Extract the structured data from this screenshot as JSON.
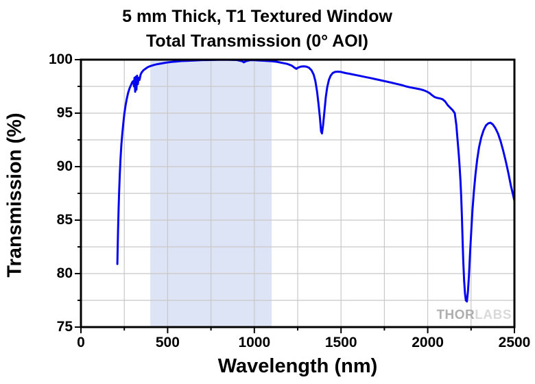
{
  "title": {
    "line1": "5 mm Thick, T1 Textured Window",
    "line2": "Total Transmission (0° AOI)"
  },
  "watermark": {
    "part1": "THOR",
    "part2": "LABS"
  },
  "colors": {
    "line": "#0404ee",
    "band": "#dde4f5",
    "grid": "#c8c8c8",
    "axis": "#000000"
  },
  "chart_data": {
    "type": "line",
    "title": "5 mm Thick, T1 Textured Window Total Transmission (0° AOI)",
    "xlabel": "Wavelength (nm)",
    "ylabel": "Transmission (%)",
    "xlim": [
      0,
      2500
    ],
    "ylim": [
      75,
      100
    ],
    "x_major_ticks": [
      0,
      500,
      1000,
      1500,
      2000,
      2500
    ],
    "x_minor_step": 250,
    "y_major_ticks": [
      75,
      80,
      85,
      90,
      95,
      100
    ],
    "y_minor_step": 2.5,
    "grid": true,
    "shaded_band_x": [
      400,
      1100
    ],
    "legend": "none",
    "series": [
      {
        "name": "Total Transmission",
        "points": [
          [
            210,
            80.9
          ],
          [
            212,
            82.5
          ],
          [
            214,
            84.0
          ],
          [
            217,
            86.0
          ],
          [
            220,
            87.5
          ],
          [
            224,
            89.2
          ],
          [
            228,
            90.6
          ],
          [
            233,
            92.0
          ],
          [
            238,
            93.0
          ],
          [
            244,
            94.0
          ],
          [
            250,
            94.9
          ],
          [
            257,
            95.7
          ],
          [
            264,
            96.3
          ],
          [
            272,
            96.9
          ],
          [
            280,
            97.3
          ],
          [
            288,
            97.6
          ],
          [
            296,
            97.9
          ],
          [
            302,
            98.0
          ],
          [
            306,
            97.5
          ],
          [
            309,
            98.3
          ],
          [
            313,
            97.0
          ],
          [
            316,
            98.4
          ],
          [
            320,
            97.2
          ],
          [
            324,
            98.5
          ],
          [
            328,
            97.7
          ],
          [
            333,
            98.3
          ],
          [
            338,
            98.1
          ],
          [
            344,
            98.6
          ],
          [
            350,
            98.8
          ],
          [
            360,
            99.0
          ],
          [
            372,
            99.15
          ],
          [
            386,
            99.3
          ],
          [
            400,
            99.4
          ],
          [
            420,
            99.5
          ],
          [
            440,
            99.58
          ],
          [
            465,
            99.65
          ],
          [
            490,
            99.72
          ],
          [
            520,
            99.78
          ],
          [
            550,
            99.83
          ],
          [
            580,
            99.87
          ],
          [
            620,
            99.9
          ],
          [
            660,
            99.93
          ],
          [
            700,
            99.96
          ],
          [
            750,
            99.97
          ],
          [
            800,
            99.98
          ],
          [
            850,
            99.99
          ],
          [
            900,
            99.97
          ],
          [
            930,
            99.85
          ],
          [
            940,
            99.75
          ],
          [
            950,
            99.85
          ],
          [
            975,
            99.95
          ],
          [
            1000,
            99.95
          ],
          [
            1030,
            99.92
          ],
          [
            1060,
            99.9
          ],
          [
            1100,
            99.85
          ],
          [
            1130,
            99.8
          ],
          [
            1160,
            99.7
          ],
          [
            1190,
            99.6
          ],
          [
            1215,
            99.45
          ],
          [
            1232,
            99.25
          ],
          [
            1242,
            99.15
          ],
          [
            1252,
            99.25
          ],
          [
            1268,
            99.35
          ],
          [
            1285,
            99.38
          ],
          [
            1300,
            99.35
          ],
          [
            1315,
            99.25
          ],
          [
            1330,
            99.0
          ],
          [
            1342,
            98.6
          ],
          [
            1352,
            98.0
          ],
          [
            1362,
            97.0
          ],
          [
            1370,
            95.9
          ],
          [
            1378,
            94.6
          ],
          [
            1385,
            93.3
          ],
          [
            1390,
            93.1
          ],
          [
            1396,
            93.8
          ],
          [
            1404,
            95.1
          ],
          [
            1412,
            96.5
          ],
          [
            1420,
            97.4
          ],
          [
            1430,
            98.1
          ],
          [
            1440,
            98.5
          ],
          [
            1452,
            98.75
          ],
          [
            1465,
            98.85
          ],
          [
            1480,
            98.88
          ],
          [
            1500,
            98.85
          ],
          [
            1525,
            98.75
          ],
          [
            1550,
            98.68
          ],
          [
            1580,
            98.58
          ],
          [
            1610,
            98.48
          ],
          [
            1640,
            98.38
          ],
          [
            1670,
            98.28
          ],
          [
            1700,
            98.17
          ],
          [
            1730,
            98.07
          ],
          [
            1760,
            97.96
          ],
          [
            1790,
            97.85
          ],
          [
            1820,
            97.74
          ],
          [
            1850,
            97.62
          ],
          [
            1875,
            97.5
          ],
          [
            1895,
            97.42
          ],
          [
            1915,
            97.36
          ],
          [
            1935,
            97.3
          ],
          [
            1955,
            97.24
          ],
          [
            1975,
            97.15
          ],
          [
            1995,
            97.02
          ],
          [
            2010,
            96.88
          ],
          [
            2025,
            96.68
          ],
          [
            2040,
            96.5
          ],
          [
            2055,
            96.42
          ],
          [
            2070,
            96.38
          ],
          [
            2085,
            96.3
          ],
          [
            2100,
            96.1
          ],
          [
            2115,
            95.75
          ],
          [
            2130,
            95.5
          ],
          [
            2145,
            95.25
          ],
          [
            2156,
            95.0
          ],
          [
            2165,
            93.9
          ],
          [
            2172,
            92.5
          ],
          [
            2179,
            91.1
          ],
          [
            2184,
            90.0
          ],
          [
            2189,
            88.6
          ],
          [
            2193,
            87.2
          ],
          [
            2197,
            85.4
          ],
          [
            2201,
            83.2
          ],
          [
            2205,
            81.2
          ],
          [
            2210,
            79.3
          ],
          [
            2215,
            78.1
          ],
          [
            2220,
            77.5
          ],
          [
            2226,
            77.4
          ],
          [
            2232,
            78.3
          ],
          [
            2238,
            79.9
          ],
          [
            2244,
            81.9
          ],
          [
            2251,
            84.0
          ],
          [
            2258,
            85.9
          ],
          [
            2266,
            87.6
          ],
          [
            2275,
            89.2
          ],
          [
            2285,
            90.6
          ],
          [
            2296,
            91.8
          ],
          [
            2308,
            92.7
          ],
          [
            2322,
            93.4
          ],
          [
            2336,
            93.85
          ],
          [
            2350,
            94.05
          ],
          [
            2362,
            94.1
          ],
          [
            2375,
            93.95
          ],
          [
            2390,
            93.6
          ],
          [
            2405,
            93.1
          ],
          [
            2420,
            92.4
          ],
          [
            2435,
            91.5
          ],
          [
            2450,
            90.5
          ],
          [
            2465,
            89.4
          ],
          [
            2480,
            88.2
          ],
          [
            2490,
            87.5
          ],
          [
            2500,
            86.8
          ]
        ]
      }
    ]
  }
}
